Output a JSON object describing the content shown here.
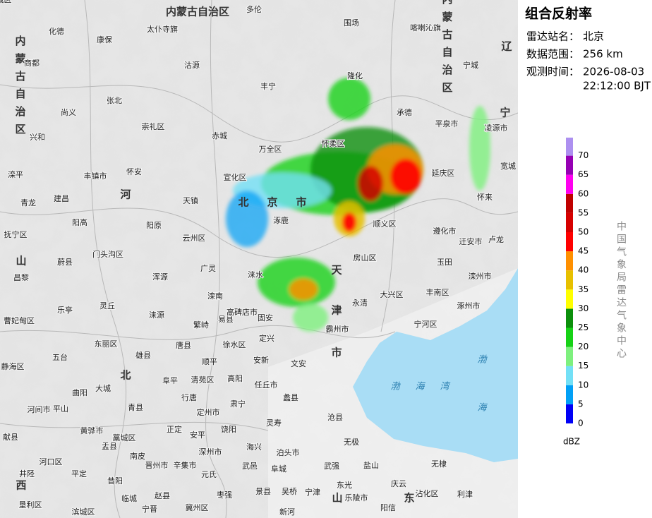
{
  "panel": {
    "title": "组合反射率",
    "rows": [
      {
        "label": "雷达站名：",
        "lines": [
          "北京"
        ]
      },
      {
        "label": "数据范围：",
        "lines": [
          "256 km"
        ]
      },
      {
        "label": "观测时间：",
        "lines": [
          "2026-08-03",
          "22:12:00 BJT"
        ]
      }
    ]
  },
  "legend": {
    "unit": "dBZ",
    "levels": [
      {
        "value": 0,
        "color": "#0000f6"
      },
      {
        "value": 5,
        "color": "#01a0f6"
      },
      {
        "value": 10,
        "color": "#73e0f6"
      },
      {
        "value": 15,
        "color": "#7ef07e"
      },
      {
        "value": 20,
        "color": "#16d216"
      },
      {
        "value": 25,
        "color": "#0c900c"
      },
      {
        "value": 30,
        "color": "#ffff00"
      },
      {
        "value": 35,
        "color": "#e7c000"
      },
      {
        "value": 40,
        "color": "#ff9000"
      },
      {
        "value": 45,
        "color": "#ff0000"
      },
      {
        "value": 50,
        "color": "#d60000"
      },
      {
        "value": 55,
        "color": "#c00000"
      },
      {
        "value": 60,
        "color": "#ff00f0"
      },
      {
        "value": 65,
        "color": "#9600b4"
      },
      {
        "value": 70,
        "color": "#ad90f0"
      }
    ]
  },
  "credit": "中国气象局雷达气象中心",
  "regions": [
    "内蒙古自治区",
    "内蒙古自治区",
    "内蒙古自治区",
    "辽",
    "宁",
    "河",
    "北",
    "山",
    "西",
    "北",
    "京",
    "市",
    "天",
    "津",
    "市",
    "山",
    "东"
  ],
  "sea": [
    "渤",
    "海",
    "湾",
    "渤",
    "海"
  ],
  "places": [
    "多伦",
    "化德",
    "太仆寺旗",
    "康保",
    "围场",
    "喀喇沁旗",
    "商都",
    "沽源",
    "丰宁",
    "隆化",
    "宁城",
    "张北",
    "尚义",
    "承德",
    "崇礼区",
    "平泉市",
    "凌源市",
    "兴和",
    "赤城",
    "万全区",
    "怀柔区",
    "滦平",
    "丰镇市",
    "怀安",
    "宣化区",
    "延庆区",
    "宽城",
    "建昌",
    "天镇",
    "怀来",
    "青龙",
    "阳高",
    "阳原",
    "涿鹿",
    "顺义区",
    "遵化市",
    "迁安市",
    "卢龙",
    "抚宁区",
    "云州区",
    "门头沟区",
    "蔚县",
    "广灵",
    "房山区",
    "玉田",
    "滦州市",
    "昌黎",
    "浑源",
    "涞水",
    "大兴区",
    "丰南区",
    "滦南",
    "涿州市",
    "乐亭",
    "灵丘",
    "涞源",
    "易县",
    "高碑店市",
    "固安",
    "永清",
    "宁河区",
    "曹妃甸区",
    "繁峙",
    "定兴",
    "霸州市",
    "东丽区",
    "唐县",
    "徐水区",
    "雄县",
    "顺平",
    "安新",
    "文安",
    "静海区",
    "五台",
    "阜平",
    "清苑区",
    "高阳",
    "任丘市",
    "大城",
    "曲阳",
    "行唐",
    "蠡县",
    "青县",
    "定州市",
    "肃宁",
    "河间市",
    "平山",
    "灵寿",
    "沧县",
    "黄骅市",
    "正定",
    "安平",
    "饶阳",
    "献县",
    "盂县",
    "藁城区",
    "无极",
    "海兴",
    "泊头市",
    "南皮",
    "晋州市",
    "辛集市",
    "深州市",
    "武强",
    "盐山",
    "无棣",
    "河口区",
    "井陉",
    "平定",
    "元氏",
    "武邑",
    "阜城",
    "东光",
    "庆云",
    "沾化区",
    "利津",
    "垦利区",
    "昔阳",
    "赵县",
    "冀州区",
    "枣强",
    "景县",
    "吴桥",
    "宁津",
    "乐陵市",
    "阳信",
    "滨城区",
    "临城",
    "宁晋",
    "新河",
    "陵城区"
  ]
}
